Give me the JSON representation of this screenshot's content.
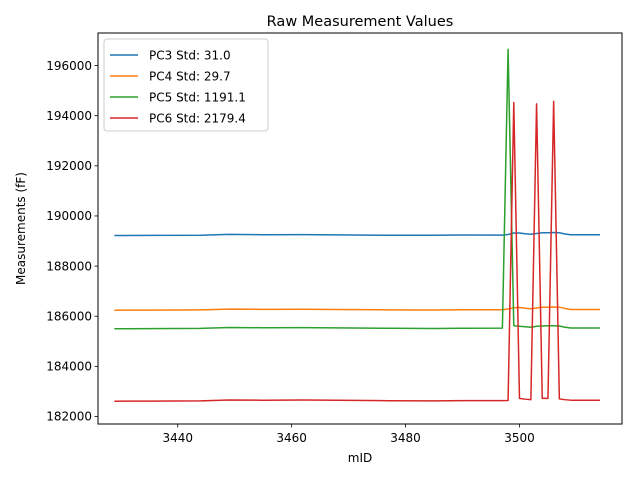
{
  "chart_data": {
    "type": "line",
    "title": "Raw Measurement Values",
    "xlabel": "mID",
    "ylabel": "Measurements (fF)",
    "xlim": [
      3426,
      3518
    ],
    "ylim": [
      181700,
      197300
    ],
    "x_ticks": [
      3440,
      3460,
      3480,
      3500
    ],
    "y_ticks": [
      182000,
      184000,
      186000,
      188000,
      190000,
      192000,
      194000,
      196000
    ],
    "grid": false,
    "legend_position": "upper left",
    "series": [
      {
        "name": "PC3 Std: 31.0",
        "color": "#1f77b4",
        "points": [
          [
            3429,
            189220
          ],
          [
            3435,
            189225
          ],
          [
            3444,
            189230
          ],
          [
            3449,
            189265
          ],
          [
            3455,
            189250
          ],
          [
            3462,
            189255
          ],
          [
            3468,
            189245
          ],
          [
            3477,
            189230
          ],
          [
            3485,
            189230
          ],
          [
            3490,
            189240
          ],
          [
            3497,
            189235
          ],
          [
            3498,
            189260
          ],
          [
            3499,
            189320
          ],
          [
            3500,
            189320
          ],
          [
            3501,
            189290
          ],
          [
            3502,
            189270
          ],
          [
            3503,
            189300
          ],
          [
            3504,
            189330
          ],
          [
            3505,
            189330
          ],
          [
            3506,
            189340
          ],
          [
            3507,
            189330
          ],
          [
            3508,
            189280
          ],
          [
            3509,
            189250
          ],
          [
            3514,
            189250
          ]
        ]
      },
      {
        "name": "PC4 Std: 29.7",
        "color": "#ff7f0e",
        "points": [
          [
            3429,
            186240
          ],
          [
            3435,
            186245
          ],
          [
            3444,
            186255
          ],
          [
            3449,
            186285
          ],
          [
            3455,
            186275
          ],
          [
            3462,
            186280
          ],
          [
            3468,
            186270
          ],
          [
            3477,
            186255
          ],
          [
            3485,
            186250
          ],
          [
            3490,
            186260
          ],
          [
            3497,
            186260
          ],
          [
            3498,
            186290
          ],
          [
            3499,
            186340
          ],
          [
            3500,
            186350
          ],
          [
            3501,
            186320
          ],
          [
            3502,
            186300
          ],
          [
            3503,
            186330
          ],
          [
            3504,
            186360
          ],
          [
            3505,
            186360
          ],
          [
            3506,
            186370
          ],
          [
            3507,
            186360
          ],
          [
            3508,
            186310
          ],
          [
            3509,
            186270
          ],
          [
            3514,
            186270
          ]
        ]
      },
      {
        "name": "PC5 Std: 1191.1",
        "color": "#2ca02c",
        "points": [
          [
            3429,
            185500
          ],
          [
            3435,
            185505
          ],
          [
            3444,
            185515
          ],
          [
            3449,
            185550
          ],
          [
            3455,
            185540
          ],
          [
            3462,
            185545
          ],
          [
            3468,
            185535
          ],
          [
            3477,
            185520
          ],
          [
            3485,
            185510
          ],
          [
            3490,
            185520
          ],
          [
            3497,
            185525
          ],
          [
            3498,
            196650
          ],
          [
            3499,
            185620
          ],
          [
            3500,
            185600
          ],
          [
            3501,
            185580
          ],
          [
            3502,
            185560
          ],
          [
            3503,
            185600
          ],
          [
            3504,
            185610
          ],
          [
            3505,
            185620
          ],
          [
            3506,
            185620
          ],
          [
            3507,
            185610
          ],
          [
            3508,
            185560
          ],
          [
            3509,
            185530
          ],
          [
            3514,
            185530
          ]
        ]
      },
      {
        "name": "PC6 Std: 2179.4",
        "color": "#d62728",
        "points": [
          [
            3429,
            182610
          ],
          [
            3435,
            182615
          ],
          [
            3444,
            182625
          ],
          [
            3449,
            182660
          ],
          [
            3455,
            182650
          ],
          [
            3462,
            182655
          ],
          [
            3468,
            182645
          ],
          [
            3477,
            182630
          ],
          [
            3485,
            182625
          ],
          [
            3490,
            182635
          ],
          [
            3497,
            182635
          ],
          [
            3498,
            182640
          ],
          [
            3499,
            194520
          ],
          [
            3500,
            182720
          ],
          [
            3501,
            182690
          ],
          [
            3502,
            182670
          ],
          [
            3503,
            194470
          ],
          [
            3504,
            182720
          ],
          [
            3505,
            182720
          ],
          [
            3506,
            194570
          ],
          [
            3507,
            182700
          ],
          [
            3508,
            182670
          ],
          [
            3509,
            182650
          ],
          [
            3514,
            182650
          ]
        ]
      }
    ]
  }
}
